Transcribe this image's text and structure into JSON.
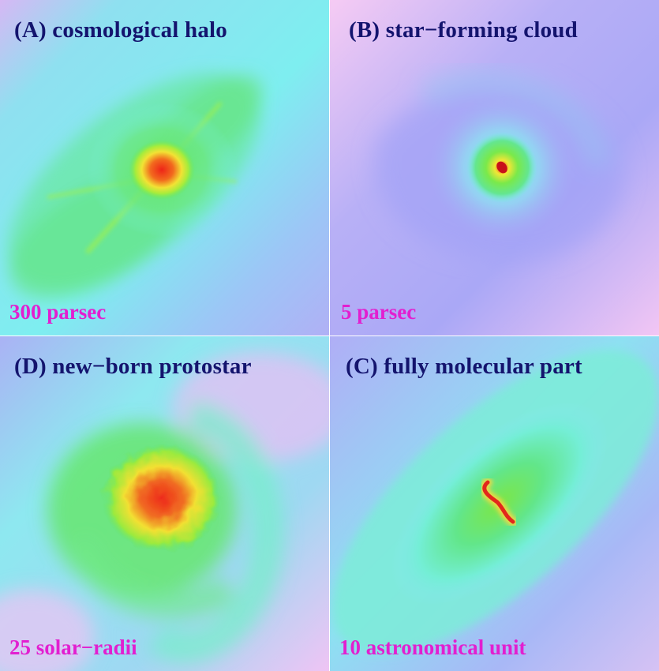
{
  "panels": {
    "a": {
      "title": "(A) cosmological halo",
      "scale": "300 parsec"
    },
    "b": {
      "title": "(B) star−forming cloud",
      "scale": "5 parsec"
    },
    "d": {
      "title": "(D) new−born protostar",
      "scale": "25 solar−radii"
    },
    "c": {
      "title": "(C) fully molecular part",
      "scale": "10 astronomical unit"
    }
  },
  "colors": {
    "title": "#14146e",
    "scale_label": "#e21fd0",
    "low_density": "#f2c8f2",
    "medium_low": "#a6a6f5",
    "medium": "#78f2ea",
    "medium_high": "#5ee85c",
    "high": "#f2e632",
    "peak": "#f01e1e"
  }
}
